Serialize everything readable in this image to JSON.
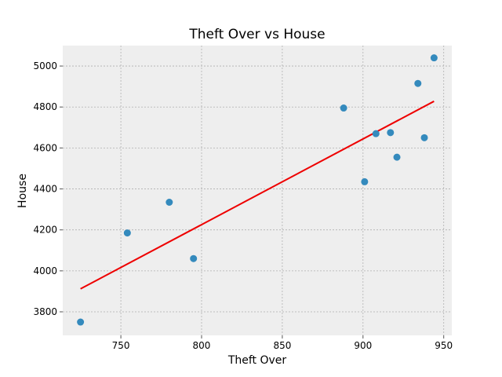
{
  "chart_data": {
    "type": "scatter",
    "title": "Theft Over vs House",
    "xlabel": "Theft Over",
    "ylabel": "House",
    "xlim": [
      714,
      955
    ],
    "ylim": [
      3685,
      5100
    ],
    "xticks": [
      750,
      800,
      850,
      900,
      950
    ],
    "yticks": [
      3800,
      4000,
      4200,
      4400,
      4600,
      4800,
      5000
    ],
    "grid": true,
    "colors": {
      "background": "#eeeeee",
      "grid": "#b0b0b0",
      "points": "#348abd",
      "trend_line": "#ee0000"
    },
    "points": [
      {
        "x": 725,
        "y": 3750
      },
      {
        "x": 754,
        "y": 4185
      },
      {
        "x": 780,
        "y": 4335
      },
      {
        "x": 795,
        "y": 4060
      },
      {
        "x": 888,
        "y": 4795
      },
      {
        "x": 901,
        "y": 4435
      },
      {
        "x": 908,
        "y": 4670
      },
      {
        "x": 917,
        "y": 4675
      },
      {
        "x": 921,
        "y": 4555
      },
      {
        "x": 934,
        "y": 4915
      },
      {
        "x": 938,
        "y": 4650
      },
      {
        "x": 944,
        "y": 5040
      }
    ],
    "trend_line": {
      "x": [
        725,
        944
      ],
      "y": [
        3912,
        4828
      ]
    }
  }
}
